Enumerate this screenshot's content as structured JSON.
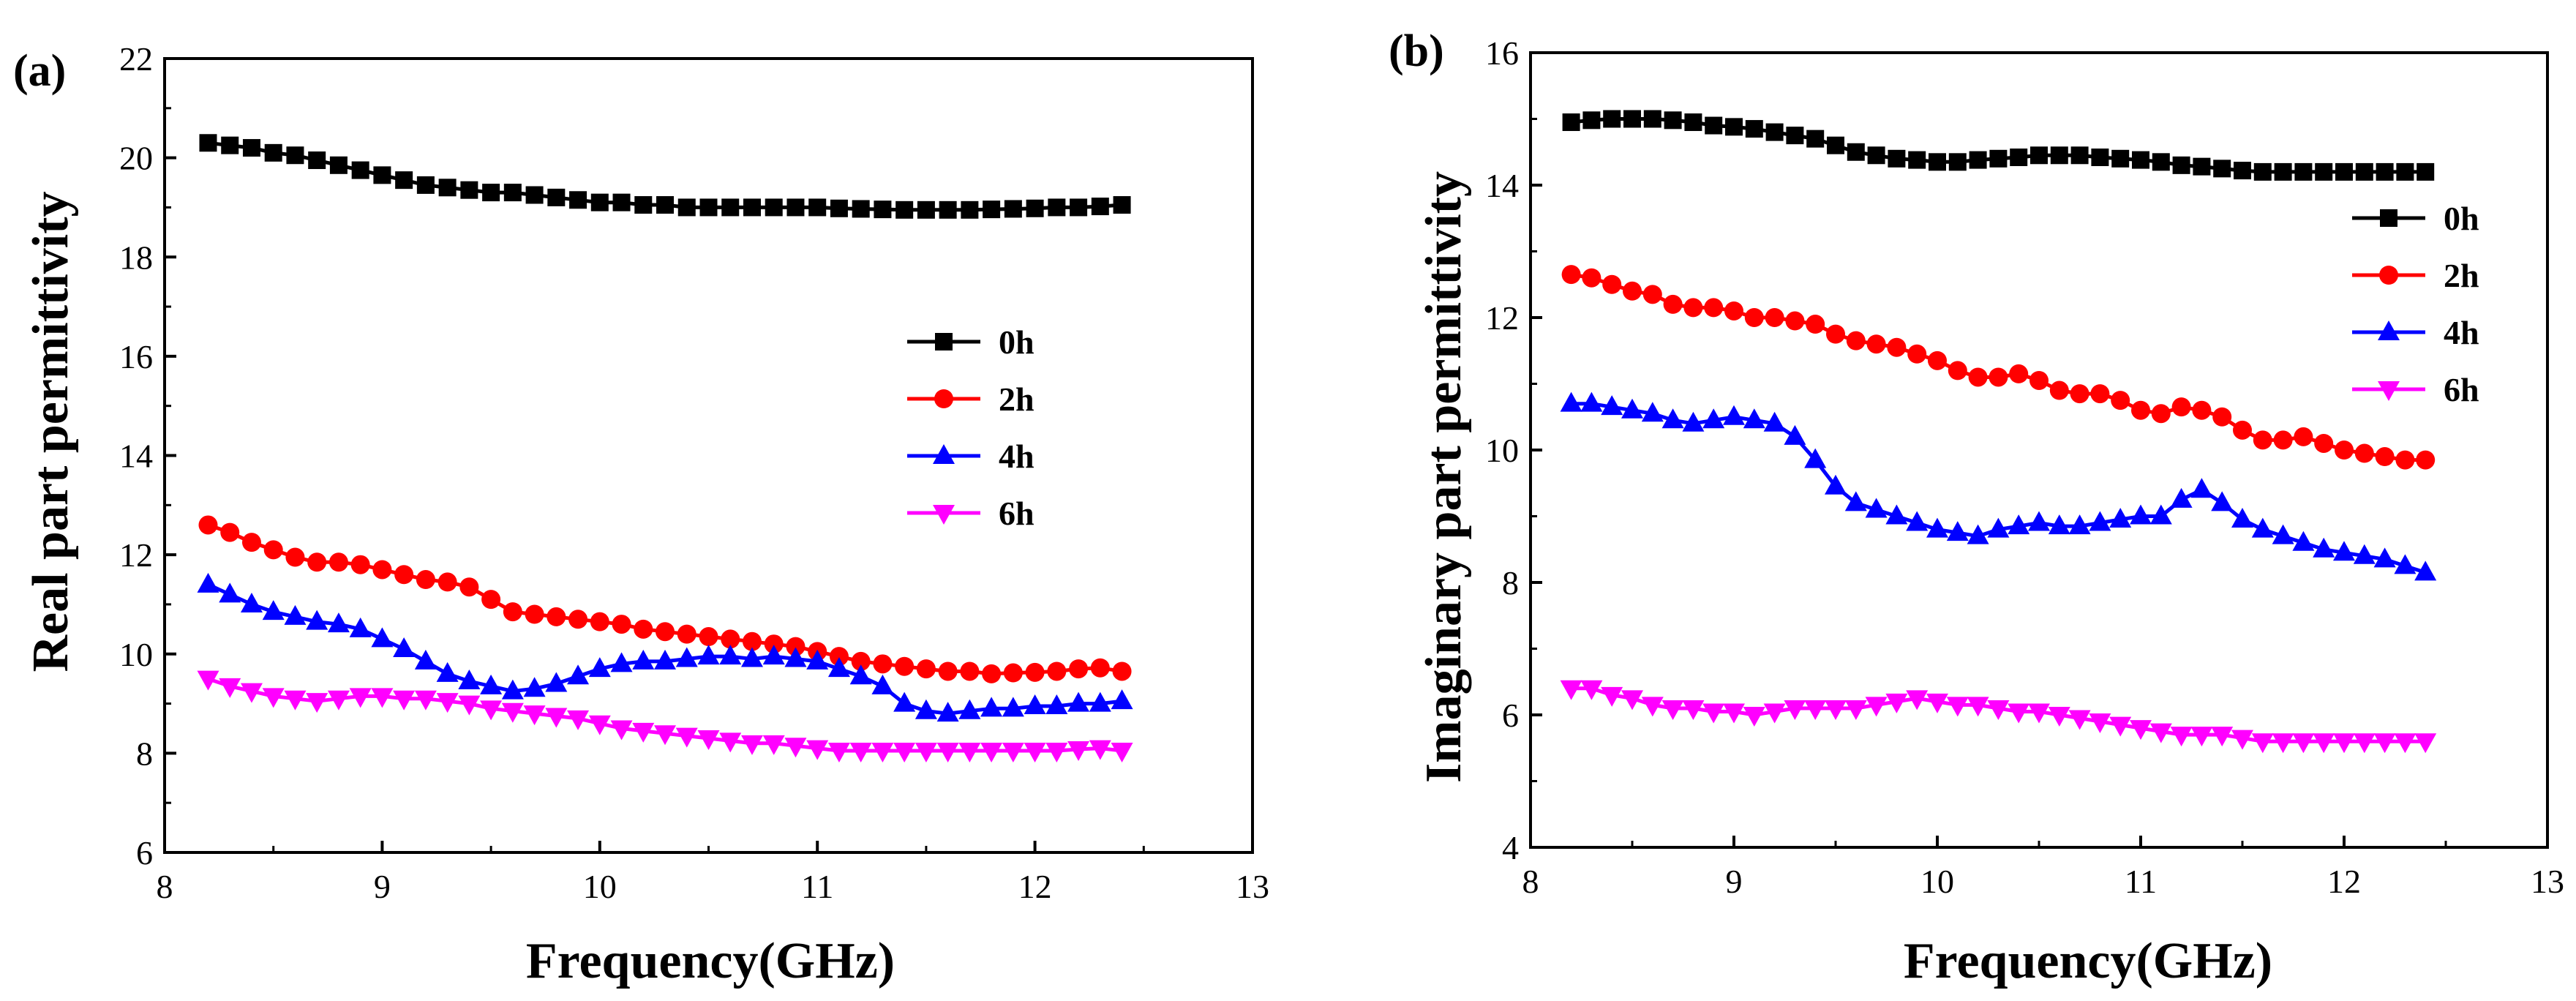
{
  "chart_data": [
    {
      "type": "line",
      "panel_label": "(a)",
      "xlabel": "Frequency(GHz)",
      "ylabel": "Real part permittivity",
      "xlim": [
        8,
        13
      ],
      "ylim": [
        6,
        22
      ],
      "xticks": [
        8,
        9,
        10,
        11,
        12,
        13
      ],
      "yticks": [
        6,
        8,
        10,
        12,
        14,
        16,
        18,
        20,
        22
      ],
      "grid": false,
      "legend_position": "right-middle",
      "x": [
        8.2,
        8.3,
        8.4,
        8.5,
        8.6,
        8.7,
        8.8,
        8.9,
        9.0,
        9.1,
        9.2,
        9.3,
        9.4,
        9.5,
        9.6,
        9.7,
        9.8,
        9.9,
        10.0,
        10.1,
        10.2,
        10.3,
        10.4,
        10.5,
        10.6,
        10.7,
        10.8,
        10.9,
        11.0,
        11.1,
        11.2,
        11.3,
        11.4,
        11.5,
        11.6,
        11.7,
        11.8,
        11.9,
        12.0,
        12.1,
        12.2,
        12.3,
        12.4
      ],
      "series": [
        {
          "name": "0h",
          "color": "#000000",
          "marker": "square",
          "values": [
            20.3,
            20.25,
            20.2,
            20.1,
            20.05,
            19.95,
            19.85,
            19.75,
            19.65,
            19.55,
            19.45,
            19.4,
            19.35,
            19.3,
            19.3,
            19.25,
            19.2,
            19.15,
            19.1,
            19.1,
            19.05,
            19.05,
            19.0,
            19.0,
            19.0,
            19.0,
            19.0,
            19.0,
            19.0,
            18.98,
            18.97,
            18.96,
            18.95,
            18.95,
            18.95,
            18.95,
            18.96,
            18.97,
            18.98,
            19.0,
            19.0,
            19.02,
            19.05
          ]
        },
        {
          "name": "2h",
          "color": "#ff0000",
          "marker": "circle",
          "values": [
            12.6,
            12.45,
            12.25,
            12.1,
            11.95,
            11.85,
            11.85,
            11.8,
            11.7,
            11.6,
            11.5,
            11.45,
            11.35,
            11.1,
            10.85,
            10.8,
            10.75,
            10.7,
            10.65,
            10.6,
            10.5,
            10.45,
            10.4,
            10.35,
            10.3,
            10.25,
            10.2,
            10.15,
            10.05,
            9.95,
            9.85,
            9.8,
            9.75,
            9.7,
            9.65,
            9.65,
            9.6,
            9.62,
            9.63,
            9.65,
            9.7,
            9.72,
            9.65
          ]
        },
        {
          "name": "4h",
          "color": "#0000ff",
          "marker": "triangle-up",
          "values": [
            11.4,
            11.2,
            11.0,
            10.85,
            10.75,
            10.65,
            10.6,
            10.5,
            10.3,
            10.1,
            9.85,
            9.6,
            9.45,
            9.35,
            9.25,
            9.3,
            9.4,
            9.55,
            9.7,
            9.8,
            9.85,
            9.85,
            9.9,
            9.95,
            9.95,
            9.9,
            9.95,
            9.9,
            9.85,
            9.7,
            9.55,
            9.35,
            9.0,
            8.85,
            8.8,
            8.85,
            8.9,
            8.9,
            8.95,
            8.95,
            9.0,
            9.0,
            9.05
          ]
        },
        {
          "name": "6h",
          "color": "#ff00ff",
          "marker": "triangle-down",
          "values": [
            9.5,
            9.35,
            9.25,
            9.15,
            9.1,
            9.05,
            9.1,
            9.15,
            9.15,
            9.1,
            9.1,
            9.05,
            9.0,
            8.9,
            8.85,
            8.8,
            8.75,
            8.7,
            8.6,
            8.5,
            8.45,
            8.4,
            8.35,
            8.3,
            8.25,
            8.2,
            8.2,
            8.15,
            8.1,
            8.05,
            8.05,
            8.05,
            8.05,
            8.05,
            8.05,
            8.05,
            8.05,
            8.05,
            8.05,
            8.05,
            8.08,
            8.1,
            8.05
          ]
        }
      ]
    },
    {
      "type": "line",
      "panel_label": "(b)",
      "xlabel": "Frequency(GHz)",
      "ylabel": "Imaginary part permittivity",
      "xlim": [
        8,
        13
      ],
      "ylim": [
        4,
        16
      ],
      "xticks": [
        8,
        9,
        10,
        11,
        12,
        13
      ],
      "yticks": [
        4,
        6,
        8,
        10,
        12,
        14,
        16
      ],
      "grid": false,
      "legend_position": "top-right",
      "x": [
        8.2,
        8.3,
        8.4,
        8.5,
        8.6,
        8.7,
        8.8,
        8.9,
        9.0,
        9.1,
        9.2,
        9.3,
        9.4,
        9.5,
        9.6,
        9.7,
        9.8,
        9.9,
        10.0,
        10.1,
        10.2,
        10.3,
        10.4,
        10.5,
        10.6,
        10.7,
        10.8,
        10.9,
        11.0,
        11.1,
        11.2,
        11.3,
        11.4,
        11.5,
        11.6,
        11.7,
        11.8,
        11.9,
        12.0,
        12.1,
        12.2,
        12.3,
        12.4
      ],
      "series": [
        {
          "name": "0h",
          "color": "#000000",
          "marker": "square",
          "values": [
            14.95,
            14.98,
            15.0,
            15.0,
            15.0,
            14.98,
            14.95,
            14.9,
            14.88,
            14.85,
            14.8,
            14.75,
            14.7,
            14.6,
            14.5,
            14.45,
            14.4,
            14.38,
            14.35,
            14.35,
            14.38,
            14.4,
            14.42,
            14.45,
            14.45,
            14.45,
            14.42,
            14.4,
            14.38,
            14.35,
            14.3,
            14.28,
            14.25,
            14.22,
            14.2,
            14.2,
            14.2,
            14.2,
            14.2,
            14.2,
            14.2,
            14.2,
            14.2
          ]
        },
        {
          "name": "2h",
          "color": "#ff0000",
          "marker": "circle",
          "values": [
            12.65,
            12.6,
            12.5,
            12.4,
            12.35,
            12.2,
            12.15,
            12.15,
            12.1,
            12.0,
            12.0,
            11.95,
            11.9,
            11.75,
            11.65,
            11.6,
            11.55,
            11.45,
            11.35,
            11.2,
            11.1,
            11.1,
            11.15,
            11.05,
            10.9,
            10.85,
            10.85,
            10.75,
            10.6,
            10.55,
            10.65,
            10.6,
            10.5,
            10.3,
            10.15,
            10.15,
            10.2,
            10.1,
            10.0,
            9.95,
            9.9,
            9.85,
            9.85
          ]
        },
        {
          "name": "4h",
          "color": "#0000ff",
          "marker": "triangle-up",
          "values": [
            10.7,
            10.7,
            10.65,
            10.6,
            10.55,
            10.45,
            10.4,
            10.45,
            10.5,
            10.45,
            10.4,
            10.2,
            9.85,
            9.45,
            9.2,
            9.1,
            9.0,
            8.9,
            8.8,
            8.75,
            8.7,
            8.8,
            8.85,
            8.9,
            8.85,
            8.85,
            8.9,
            8.95,
            9.0,
            9.0,
            9.25,
            9.4,
            9.2,
            8.95,
            8.8,
            8.7,
            8.6,
            8.5,
            8.45,
            8.4,
            8.35,
            8.25,
            8.15
          ]
        },
        {
          "name": "6h",
          "color": "#ff00ff",
          "marker": "triangle-down",
          "values": [
            6.4,
            6.4,
            6.3,
            6.25,
            6.15,
            6.1,
            6.1,
            6.05,
            6.05,
            6.0,
            6.05,
            6.1,
            6.1,
            6.1,
            6.1,
            6.15,
            6.2,
            6.25,
            6.2,
            6.15,
            6.15,
            6.1,
            6.05,
            6.05,
            6.0,
            5.95,
            5.9,
            5.85,
            5.8,
            5.75,
            5.7,
            5.7,
            5.7,
            5.65,
            5.6,
            5.6,
            5.6,
            5.6,
            5.6,
            5.6,
            5.6,
            5.6,
            5.6
          ]
        }
      ]
    }
  ]
}
